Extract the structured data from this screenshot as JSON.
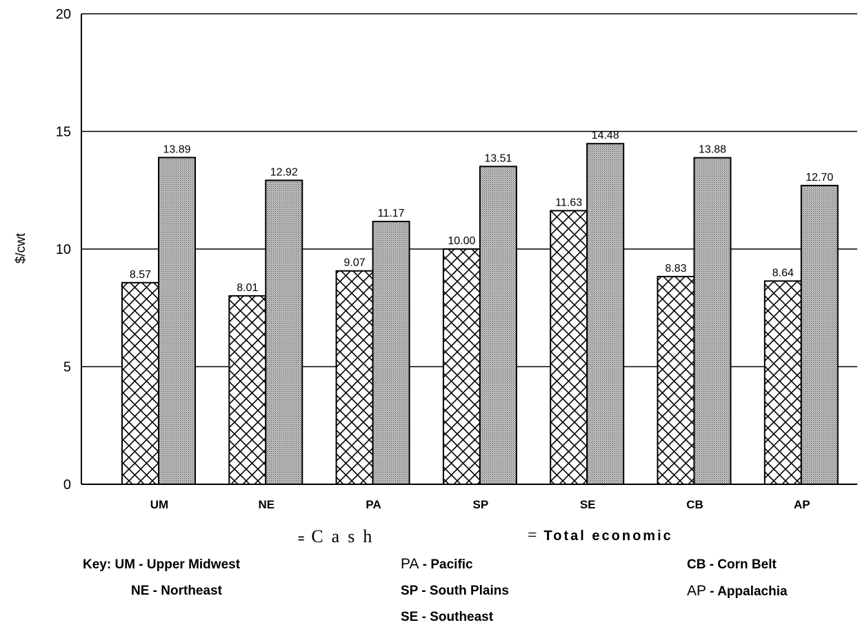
{
  "chart_data": {
    "type": "bar",
    "ylabel": "$/cwt",
    "ylim": [
      0,
      20
    ],
    "yticks": [
      0,
      5,
      10,
      15,
      20
    ],
    "grid": true,
    "categories": [
      "UM",
      "NE",
      "PA",
      "SP",
      "SE",
      "CB",
      "AP"
    ],
    "series": [
      {
        "name": "Cash",
        "values": [
          8.57,
          8.01,
          9.07,
          10.0,
          11.63,
          8.83,
          8.64
        ]
      },
      {
        "name": "Total economic",
        "values": [
          13.89,
          12.92,
          11.17,
          13.51,
          14.48,
          13.88,
          12.7
        ]
      }
    ],
    "data_labels": {
      "cash": [
        "8.57",
        "8.01",
        "9.07",
        "10.00",
        "11.63",
        "8.83",
        "8.64"
      ],
      "total": [
        "13.89",
        "12.92",
        "11.17",
        "13.51",
        "14.48",
        "13.88",
        "12.70"
      ]
    }
  },
  "legend": {
    "cash_prefix": "=",
    "cash_label": "Cash",
    "total_prefix": "=",
    "total_label": "Total economic"
  },
  "key": {
    "prefix": "Key:",
    "um": "UM - Upper Midwest",
    "ne": "NE - Northeast",
    "pa_abbr": "PA",
    "pa_rest": " - Pacific",
    "sp": "SP - South Plains",
    "se": "SE - Southeast",
    "cb": "CB - Corn Belt",
    "ap_abbr": "AP",
    "ap_rest": " - Appalachia"
  }
}
